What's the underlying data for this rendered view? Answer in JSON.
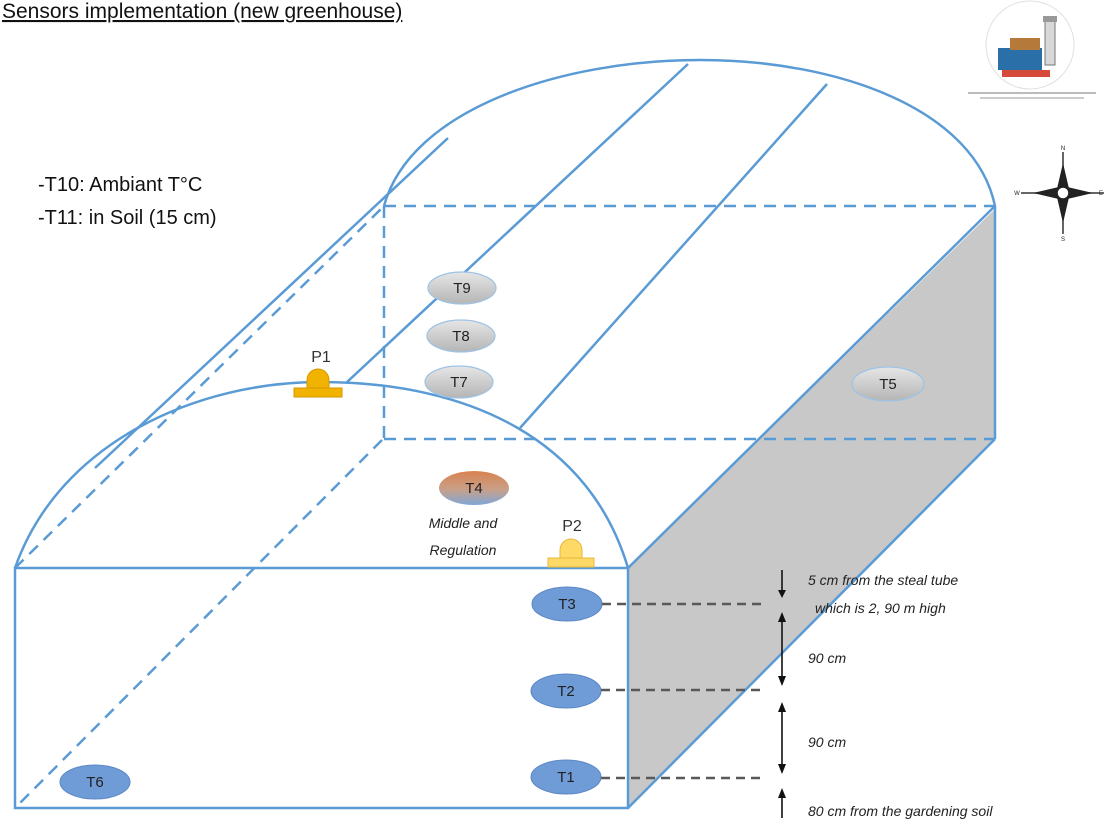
{
  "title": "Sensors implementation (new greenhouse)",
  "legend": [
    "-T10: Ambiant T°C",
    "-T11: in Soil (15 cm)"
  ],
  "sensors": {
    "t1": "T1",
    "t2": "T2",
    "t3": "T3",
    "t4": "T4",
    "t5": "T5",
    "t6": "T6",
    "t7": "T7",
    "t8": "T8",
    "t9": "T9"
  },
  "probes": {
    "p1": "P1",
    "p2": "P2"
  },
  "t4_note": [
    "Middle and",
    "Regulation"
  ],
  "measurements": {
    "top_line1": "5 cm from the steal tube",
    "top_line2": "which is 2, 90 m high",
    "gap1": "90 cm",
    "gap2": "90 cm",
    "bottom": "80 cm from the gardening soil"
  },
  "colors": {
    "frame": "#5b9bd5",
    "sensor_blue": "#6f9bd6",
    "sensor_grey": "#c9c9c9",
    "t4_top": "#d98c5f",
    "p1": "#f2b200",
    "p2": "#ffd966",
    "side_wall": "#c8c8c8"
  },
  "icons": [
    "compass-rose-icon",
    "logo-badge"
  ]
}
